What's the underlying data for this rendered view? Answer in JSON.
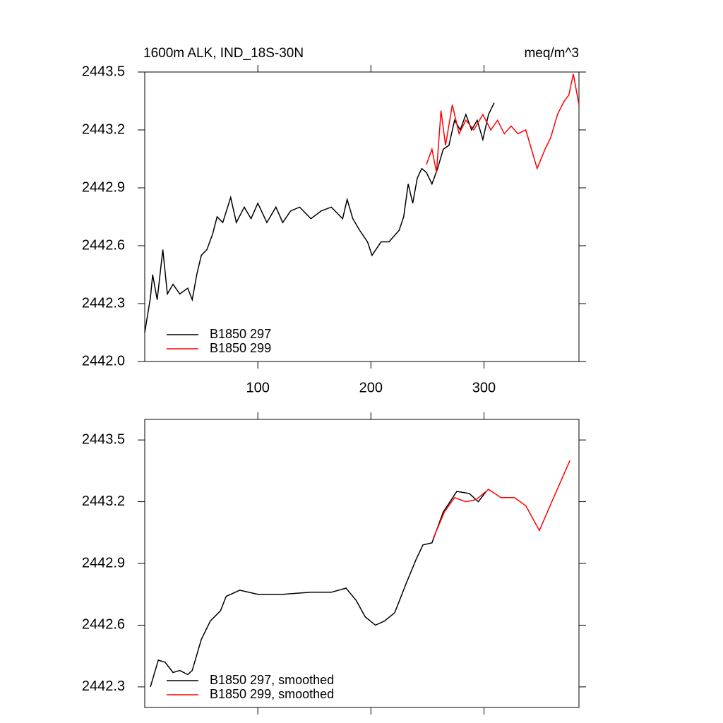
{
  "chart_data": [
    {
      "type": "line",
      "title": "1600m ALK, IND_18S-30N",
      "units": "meq/m^3",
      "xlim": [
        0,
        384
      ],
      "xticks": [
        100,
        200,
        300
      ],
      "xtick_labels": true,
      "ylim": [
        2442,
        2443.5
      ],
      "yticks": [
        {
          "value": 2442,
          "label": "2442.0"
        },
        2442.3,
        2442.6,
        2442.9,
        2443.2,
        2443.5
      ],
      "legend": "lower left",
      "series": [
        {
          "name": "B1850 297",
          "color": "#000000",
          "x": [
            0,
            5,
            7,
            11,
            16,
            20,
            25,
            31,
            38,
            42,
            46,
            50,
            55,
            60,
            64,
            69,
            76,
            81,
            88,
            94,
            100,
            108,
            116,
            122,
            129,
            137,
            147,
            156,
            165,
            175,
            179,
            184,
            190,
            197,
            201,
            209,
            216,
            225,
            229,
            233,
            237,
            241,
            245,
            249,
            254,
            259,
            264,
            269,
            274,
            279,
            284,
            289,
            294,
            299,
            304,
            309
          ],
          "values": [
            2442.15,
            2442.33,
            2442.45,
            2442.32,
            2442.58,
            2442.35,
            2442.4,
            2442.35,
            2442.38,
            2442.32,
            2442.45,
            2442.55,
            2442.58,
            2442.66,
            2442.75,
            2442.72,
            2442.85,
            2442.72,
            2442.8,
            2442.74,
            2442.82,
            2442.72,
            2442.8,
            2442.72,
            2442.78,
            2442.8,
            2442.74,
            2442.78,
            2442.8,
            2442.74,
            2442.84,
            2442.74,
            2442.68,
            2442.62,
            2442.55,
            2442.62,
            2442.62,
            2442.68,
            2442.75,
            2442.92,
            2442.82,
            2442.95,
            2443.0,
            2442.98,
            2442.92,
            2443.0,
            2443.1,
            2443.12,
            2443.25,
            2443.2,
            2443.28,
            2443.2,
            2443.25,
            2443.15,
            2443.28,
            2443.34
          ]
        },
        {
          "name": "B1850 299",
          "color": "#ff0000",
          "x": [
            249,
            254,
            258,
            262,
            266,
            272,
            278,
            284,
            291,
            299,
            306,
            312,
            318,
            324,
            330,
            337,
            341,
            347,
            354,
            359,
            365,
            371,
            375,
            379,
            384
          ],
          "values": [
            2443.02,
            2443.1,
            2442.98,
            2443.3,
            2443.12,
            2443.33,
            2443.18,
            2443.25,
            2443.2,
            2443.28,
            2443.2,
            2443.25,
            2443.18,
            2443.22,
            2443.18,
            2443.2,
            2443.12,
            2443.0,
            2443.1,
            2443.16,
            2443.28,
            2443.35,
            2443.38,
            2443.49,
            2443.33
          ]
        }
      ]
    },
    {
      "type": "line",
      "xlim": [
        0,
        384
      ],
      "xticks": [
        100,
        200,
        300
      ],
      "xtick_labels": false,
      "ylim": [
        2442.2,
        2443.6
      ],
      "yticks": [
        2442.3,
        2442.6,
        2442.9,
        2443.2,
        2443.5
      ],
      "legend": "lower left",
      "series": [
        {
          "name": "B1850 297, smoothed",
          "color": "#000000",
          "x": [
            5,
            12,
            18,
            25,
            31,
            38,
            42,
            50,
            58,
            67,
            72,
            84,
            100,
            122,
            147,
            165,
            178,
            187,
            195,
            204,
            212,
            221,
            231,
            240,
            246,
            254,
            264,
            276,
            287,
            295,
            302
          ],
          "values": [
            2442.3,
            2442.43,
            2442.42,
            2442.37,
            2442.38,
            2442.36,
            2442.38,
            2442.53,
            2442.62,
            2442.67,
            2442.74,
            2442.77,
            2442.75,
            2442.75,
            2442.76,
            2442.76,
            2442.78,
            2442.72,
            2442.64,
            2442.6,
            2442.62,
            2442.66,
            2442.8,
            2442.92,
            2442.99,
            2443.0,
            2443.15,
            2443.25,
            2443.24,
            2443.2,
            2443.25
          ]
        },
        {
          "name": "B1850 299, smoothed",
          "color": "#ff0000",
          "x": [
            255,
            265,
            274,
            284,
            293,
            304,
            315,
            327,
            337,
            349,
            360,
            368,
            376
          ],
          "values": [
            2443.02,
            2443.15,
            2443.22,
            2443.2,
            2443.21,
            2443.26,
            2443.22,
            2443.22,
            2443.18,
            2443.06,
            2443.2,
            2443.3,
            2443.4
          ]
        }
      ]
    }
  ]
}
